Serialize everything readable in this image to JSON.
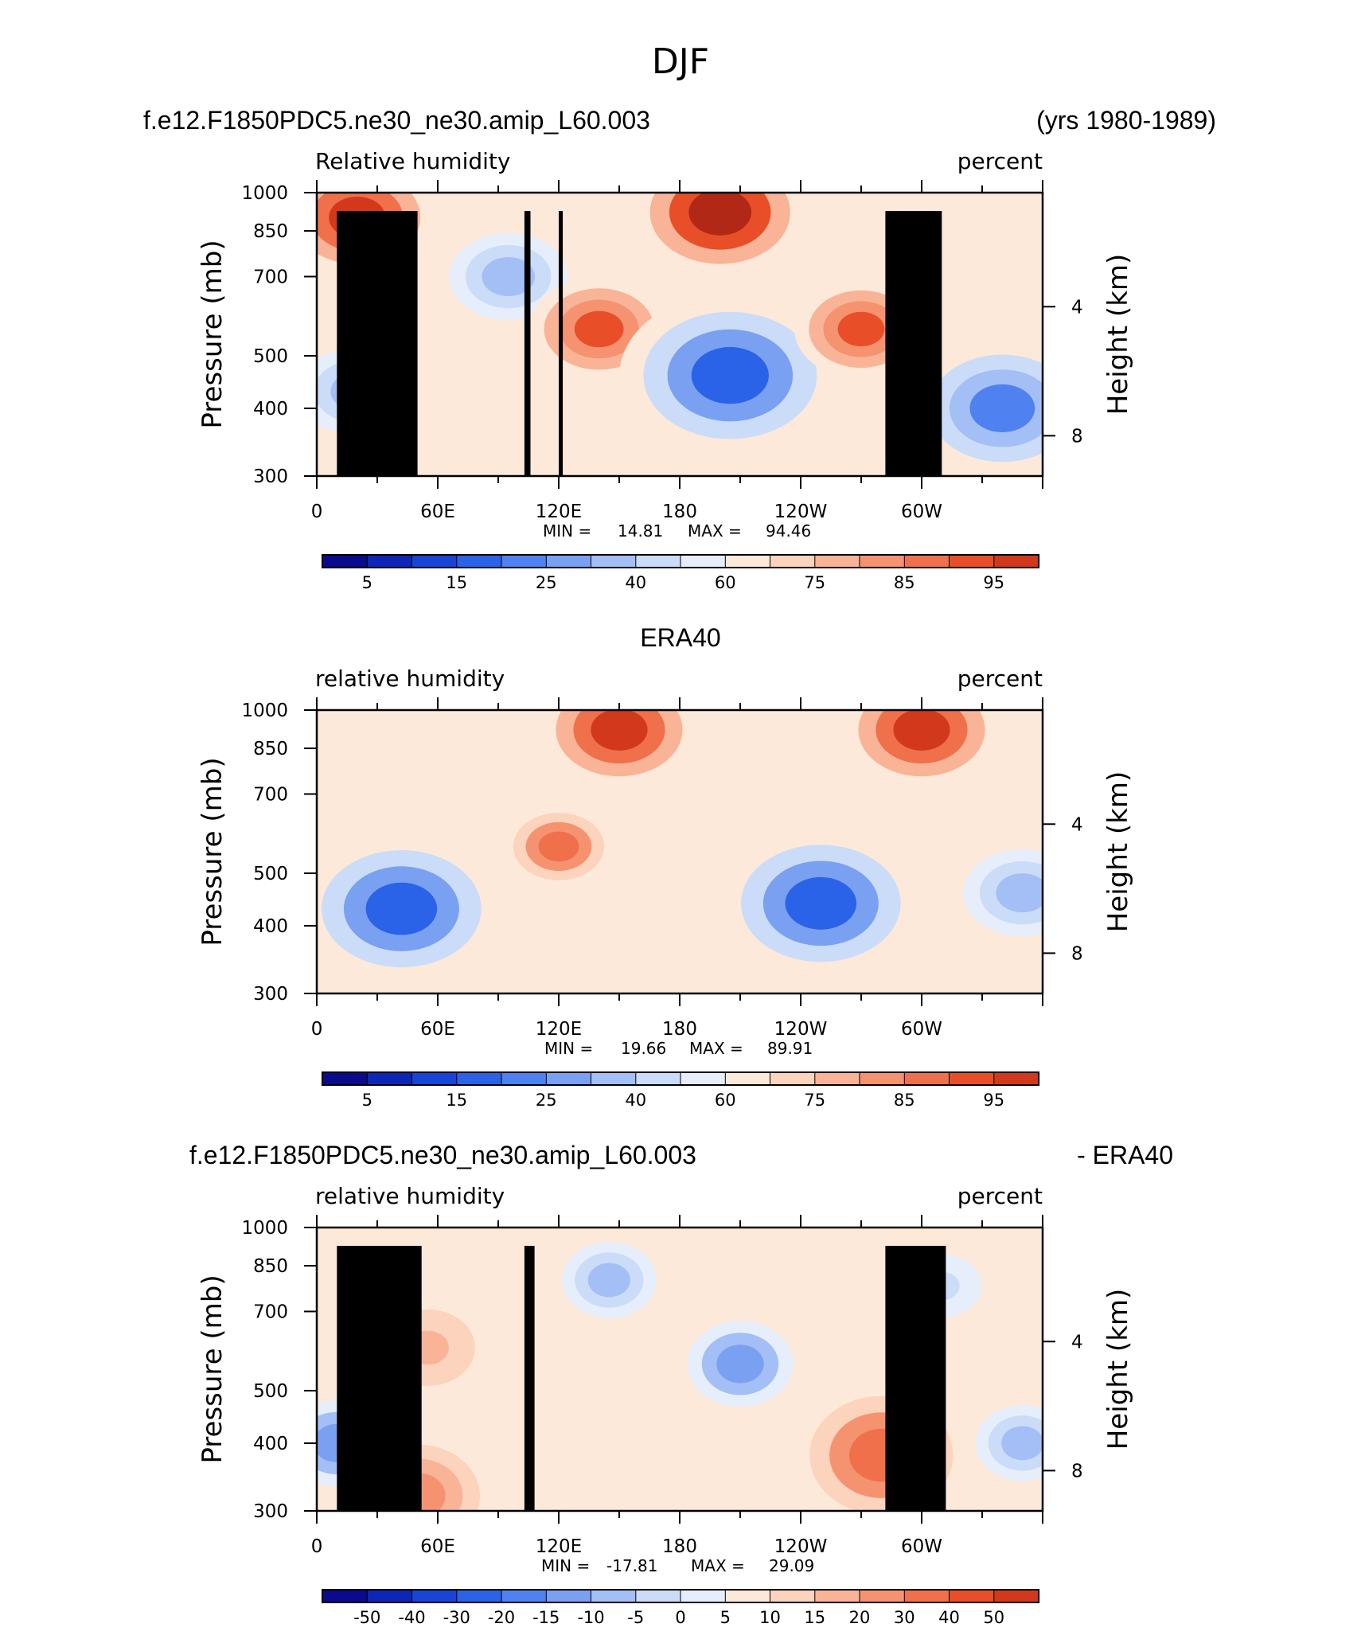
{
  "figure": {
    "title": "DJF"
  },
  "colors": {
    "rh_scale": [
      "#0a0a8c",
      "#0d26b8",
      "#1845d6",
      "#2a63e8",
      "#4f82f0",
      "#7aa0f2",
      "#a3bff5",
      "#cadcf8",
      "#e6eefb",
      "#fde9d9",
      "#fcd3bc",
      "#f9b497",
      "#f59371",
      "#f0704c",
      "#e84f28",
      "#d2391c",
      "#b12916",
      "#8a1510"
    ],
    "diff_scale": [
      "#0a0a8c",
      "#0d26b8",
      "#1845d6",
      "#2a63e8",
      "#4f82f0",
      "#7aa0f2",
      "#a3bff5",
      "#cadcf8",
      "#e6eefb",
      "#fde9d9",
      "#fcd3bc",
      "#f9b497",
      "#f59371",
      "#f0704c",
      "#e84f28",
      "#d2391c",
      "#b12916",
      "#8a1510"
    ],
    "topography": "#000000"
  },
  "chart_data": [
    {
      "type": "heatmap",
      "title_left": "f.e12.F1850PDC5.ne30_ne30.amip_L60.003",
      "title_right": "(yrs 1980-1989)",
      "subtitle_left": "Relative humidity",
      "subtitle_right": "percent",
      "ylabel": "Pressure (mb)",
      "ylabel_right": "Height (km)",
      "x_ticks": [
        "0",
        "60E",
        "120E",
        "180",
        "120W",
        "60W"
      ],
      "y_ticks": [
        "300",
        "400",
        "500",
        "700",
        "850",
        "1000"
      ],
      "y_ticks_right": [
        "8",
        "4"
      ],
      "y_scale": "log",
      "ylim": [
        1000,
        300
      ],
      "xlim": [
        0,
        360
      ],
      "min_label": "MIN =",
      "min_value": "14.81",
      "max_label": "MAX =",
      "max_value": "94.46",
      "colorbar_labels": [
        "5",
        "15",
        "25",
        "40",
        "60",
        "75",
        "85",
        "95"
      ],
      "features": [
        {
          "lon": 95,
          "lev": 700,
          "rh": 35
        },
        {
          "lon": 20,
          "lev": 430,
          "rh": 35
        },
        {
          "lon": 140,
          "lev": 560,
          "rh": 82
        },
        {
          "lon": 205,
          "lev": 460,
          "rh": 15
        },
        {
          "lon": 340,
          "lev": 400,
          "rh": 25
        },
        {
          "lon": 270,
          "lev": 560,
          "rh": 80
        },
        {
          "lon": 200,
          "lev": 920,
          "rh": 93
        },
        {
          "lon": 20,
          "lev": 900,
          "rh": 88
        }
      ]
    },
    {
      "type": "heatmap",
      "title_center": "ERA40",
      "subtitle_left": "relative humidity",
      "subtitle_right": "percent",
      "ylabel": "Pressure (mb)",
      "ylabel_right": "Height (km)",
      "x_ticks": [
        "0",
        "60E",
        "120E",
        "180",
        "120W",
        "60W"
      ],
      "y_ticks": [
        "300",
        "400",
        "500",
        "700",
        "850",
        "1000"
      ],
      "y_ticks_right": [
        "8",
        "4"
      ],
      "y_scale": "log",
      "ylim": [
        1000,
        300
      ],
      "xlim": [
        0,
        360
      ],
      "min_label": "MIN =",
      "min_value": "19.66",
      "max_label": "MAX =",
      "max_value": "89.91",
      "colorbar_labels": [
        "5",
        "15",
        "25",
        "40",
        "60",
        "75",
        "85",
        "95"
      ],
      "features": [
        {
          "lon": 42,
          "lev": 430,
          "rh": 20
        },
        {
          "lon": 120,
          "lev": 560,
          "rh": 75
        },
        {
          "lon": 250,
          "lev": 440,
          "rh": 20
        },
        {
          "lon": 350,
          "lev": 460,
          "rh": 35
        },
        {
          "lon": 150,
          "lev": 920,
          "rh": 88
        },
        {
          "lon": 300,
          "lev": 920,
          "rh": 88
        }
      ]
    },
    {
      "type": "heatmap",
      "title_left": "f.e12.F1850PDC5.ne30_ne30.amip_L60.003",
      "title_right": "- ERA40",
      "subtitle_left": "relative humidity",
      "subtitle_right": "percent",
      "ylabel": "Pressure (mb)",
      "ylabel_right": "Height (km)",
      "x_ticks": [
        "0",
        "60E",
        "120E",
        "180",
        "120W",
        "60W"
      ],
      "y_ticks": [
        "300",
        "400",
        "500",
        "700",
        "850",
        "1000"
      ],
      "y_ticks_right": [
        "8",
        "4"
      ],
      "y_scale": "log",
      "ylim": [
        1000,
        300
      ],
      "xlim": [
        0,
        360
      ],
      "min_label": "MIN =",
      "min_value": "-17.81",
      "max_label": "MAX =",
      "max_value": "29.09",
      "colorbar_labels": [
        "-50",
        "-40",
        "-30",
        "-20",
        "-15",
        "-10",
        "-5",
        "0",
        "5",
        "10",
        "15",
        "20",
        "30",
        "40",
        "50"
      ],
      "features": [
        {
          "lon": 10,
          "lev": 400,
          "diff": -15
        },
        {
          "lon": 50,
          "lev": 320,
          "diff": 20
        },
        {
          "lon": 55,
          "lev": 600,
          "diff": 12
        },
        {
          "lon": 210,
          "lev": 560,
          "diff": -15
        },
        {
          "lon": 280,
          "lev": 380,
          "diff": 25
        },
        {
          "lon": 145,
          "lev": 800,
          "diff": -12
        },
        {
          "lon": 350,
          "lev": 400,
          "diff": -12
        },
        {
          "lon": 310,
          "lev": 780,
          "diff": -8
        }
      ]
    }
  ]
}
